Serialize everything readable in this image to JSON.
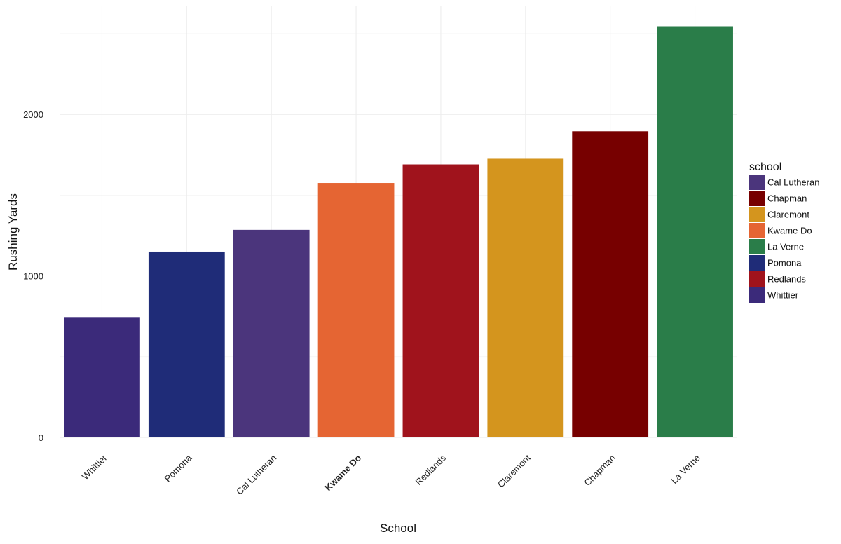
{
  "chart_data": {
    "type": "bar",
    "categories": [
      "Whittier",
      "Pomona",
      "Cal Lutheran",
      "Kwame Do",
      "Redlands",
      "Claremont",
      "Chapman",
      "La Verne"
    ],
    "values": [
      745,
      1150,
      1285,
      1575,
      1690,
      1725,
      1895,
      2545
    ],
    "highlighted_category": "Kwame Do",
    "bar_colors": [
      "#3b2a7a",
      "#1f2c78",
      "#4b357c",
      "#e56533",
      "#a0131c",
      "#d4951e",
      "#770000",
      "#2a7d49"
    ],
    "xlabel": "School",
    "ylabel": "Rushing Yards",
    "ylim": [
      0,
      2600
    ],
    "yticks": [
      0,
      1000,
      2000
    ],
    "grid": true,
    "legend": {
      "title": "school",
      "placement": "right",
      "items": [
        {
          "label": "Cal Lutheran",
          "color": "#4b357c"
        },
        {
          "label": "Chapman",
          "color": "#770000"
        },
        {
          "label": "Claremont",
          "color": "#d4951e"
        },
        {
          "label": "Kwame Do",
          "color": "#e56533"
        },
        {
          "label": "La Verne",
          "color": "#2a7d49"
        },
        {
          "label": "Pomona",
          "color": "#1f2c78"
        },
        {
          "label": "Redlands",
          "color": "#a0131c"
        },
        {
          "label": "Whittier",
          "color": "#3b2a7a"
        }
      ]
    }
  }
}
